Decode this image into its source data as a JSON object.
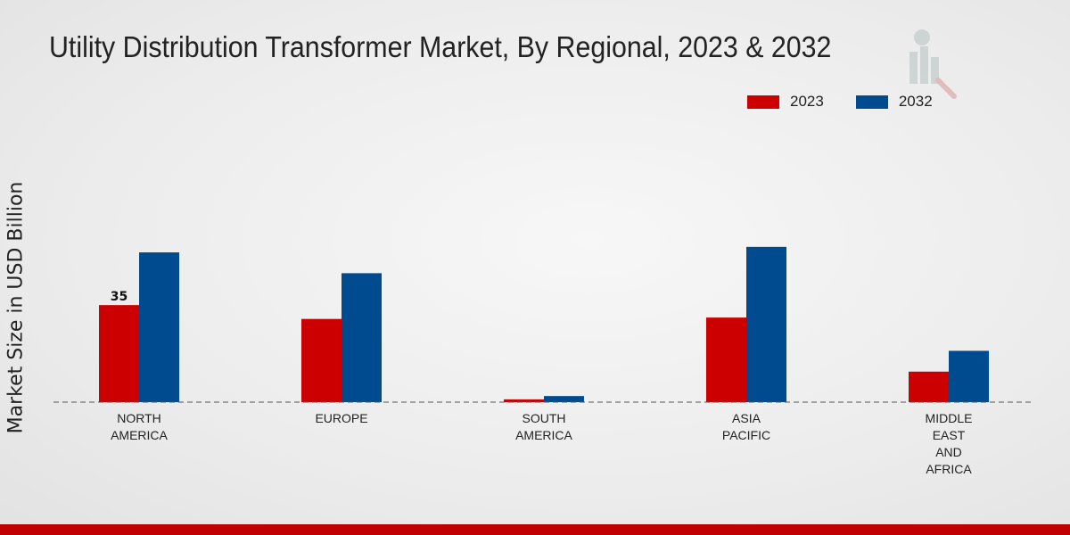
{
  "chart_data": {
    "type": "bar",
    "title": "Utility Distribution Transformer Market, By Regional, 2023 & 2032",
    "xlabel": "",
    "ylabel": "Market Size in USD Billion",
    "categories": [
      [
        "NORTH",
        "AMERICA"
      ],
      [
        "EUROPE"
      ],
      [
        "SOUTH",
        "AMERICA"
      ],
      [
        "ASIA",
        "PACIFIC"
      ],
      [
        "MIDDLE",
        "EAST",
        "AND",
        "AFRICA"
      ]
    ],
    "series": [
      {
        "name": "2023",
        "color": "#cc0000",
        "values": [
          35,
          30,
          1,
          30.5,
          11
        ]
      },
      {
        "name": "2032",
        "color": "#004a8f",
        "values": [
          54,
          46.5,
          2.2,
          56,
          18.5
        ]
      }
    ],
    "data_labels": [
      {
        "series": 0,
        "index": 0,
        "text": "35"
      }
    ],
    "ylim": [
      0,
      100
    ],
    "grid": false,
    "legend": "top-right"
  },
  "legend": {
    "items": [
      {
        "label": "2023",
        "color": "#cc0000"
      },
      {
        "label": "2032",
        "color": "#004a8f"
      }
    ]
  },
  "colors": {
    "footer_bar": "#c00000"
  },
  "watermark_icon": "market-research-logo-icon"
}
